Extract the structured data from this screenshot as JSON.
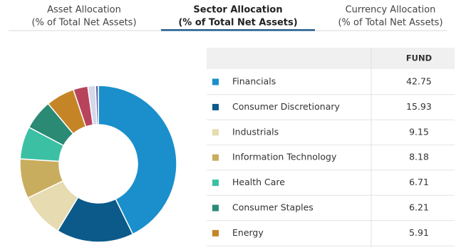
{
  "tabs": [
    {
      "title": "Asset Allocation",
      "subtitle": "(% of Total Net Assets)"
    },
    {
      "title": "Sector Allocation",
      "subtitle": "(% of Total Net Assets)"
    },
    {
      "title": "Currency Allocation",
      "subtitle": "(% of Total Net Assets)"
    }
  ],
  "active_tab": 1,
  "table": {
    "header": "FUND"
  },
  "chart_data": {
    "type": "donut",
    "categories": [
      "Financials",
      "Consumer Discretionary",
      "Industrials",
      "Information Technology",
      "Health Care",
      "Consumer Staples",
      "Energy",
      null,
      null,
      null
    ],
    "values": [
      42.75,
      15.93,
      9.15,
      8.18,
      6.71,
      6.21,
      5.91,
      3.0,
      1.6,
      0.56
    ],
    "value_labels": [
      "42.75",
      "15.93",
      "9.15",
      "8.18",
      "6.71",
      "6.21",
      "5.91",
      null,
      null,
      null
    ],
    "colors": [
      "#1a8fcb",
      "#0b5a8a",
      "#e6dbb1",
      "#c9ad5e",
      "#3cc0a3",
      "#2a8a74",
      "#c58527",
      "#b8435c",
      "#d5d8ea",
      "#5b5ea6"
    ]
  }
}
